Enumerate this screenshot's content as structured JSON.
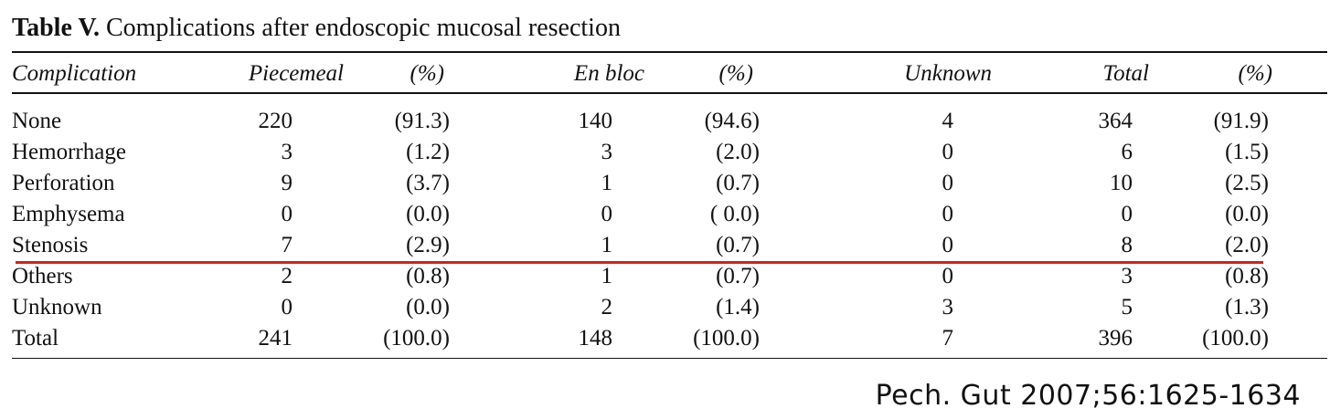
{
  "caption": {
    "label": "Table V.",
    "text": "Complications after endoscopic mucosal resection"
  },
  "table": {
    "headers": [
      "Complication",
      "Piecemeal",
      "(%)",
      "En bloc",
      "(%)",
      "Unknown",
      "Total",
      "(%)"
    ],
    "rows": [
      [
        "None",
        "220",
        "(91.3)",
        "140",
        "(94.6)",
        "4",
        "364",
        "(91.9)"
      ],
      [
        "Hemorrhage",
        "3",
        "(1.2)",
        "3",
        "(2.0)",
        "0",
        "6",
        "(1.5)"
      ],
      [
        "Perforation",
        "9",
        "(3.7)",
        "1",
        "(0.7)",
        "0",
        "10",
        "(2.5)"
      ],
      [
        "Emphysema",
        "0",
        "(0.0)",
        "0",
        "( 0.0)",
        "0",
        "0",
        "(0.0)"
      ],
      [
        "Stenosis",
        "7",
        "(2.9)",
        "1",
        "(0.7)",
        "0",
        "8",
        "(2.0)"
      ],
      [
        "Others",
        "2",
        "(0.8)",
        "1",
        "(0.7)",
        "0",
        "3",
        "(0.8)"
      ],
      [
        "Unknown",
        "0",
        "(0.0)",
        "2",
        "(1.4)",
        "3",
        "5",
        "(1.3)"
      ],
      [
        "Total",
        "241",
        "(100.0)",
        "148",
        "(100.0)",
        "7",
        "396",
        "(100.0)"
      ]
    ]
  },
  "highlight_color": "#d21f1f",
  "citation": "Pech. Gut 2007;56:1625-1634"
}
